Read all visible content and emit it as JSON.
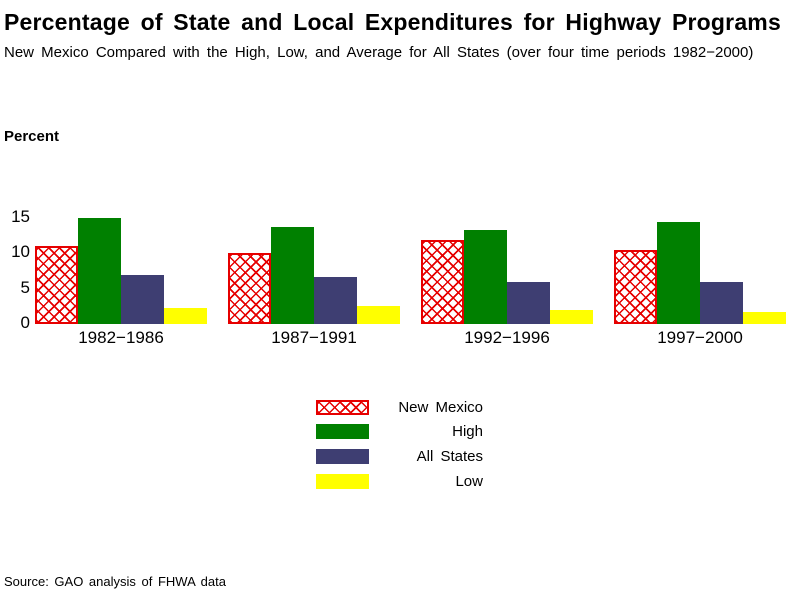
{
  "header": {
    "title": "Percentage of State and Local Expenditures for Highway Programs",
    "subtitle": "New Mexico Compared with the High, Low, and Average for All States (over four time periods 1982−2000)"
  },
  "chart_data": {
    "type": "bar",
    "title": "Percentage of State and Local Expenditures for Highway Programs",
    "ylabel": "Percent",
    "xlabel": "",
    "categories": [
      "1982−1986",
      "1987−1991",
      "1992−1996",
      "1997−2000"
    ],
    "series": [
      {
        "name": "New Mexico",
        "values": [
          11.0,
          10.0,
          11.9,
          10.5
        ],
        "color": "#e60000",
        "pattern": "crosshatch"
      },
      {
        "name": "High",
        "values": [
          15.0,
          13.7,
          13.3,
          14.4
        ],
        "color": "#008000"
      },
      {
        "name": "All States",
        "values": [
          7.0,
          6.7,
          6.0,
          6.0
        ],
        "color": "#3e3e72"
      },
      {
        "name": "Low",
        "values": [
          2.3,
          2.5,
          2.0,
          1.7
        ],
        "color": "#ffff00"
      }
    ],
    "yticks": [
      0,
      5,
      10,
      15
    ],
    "ylim": [
      0,
      16
    ],
    "grid": false,
    "axis_lines": false,
    "legend_position": "bottom-center"
  },
  "footer": {
    "source": "Source: GAO analysis of FHWA data"
  }
}
